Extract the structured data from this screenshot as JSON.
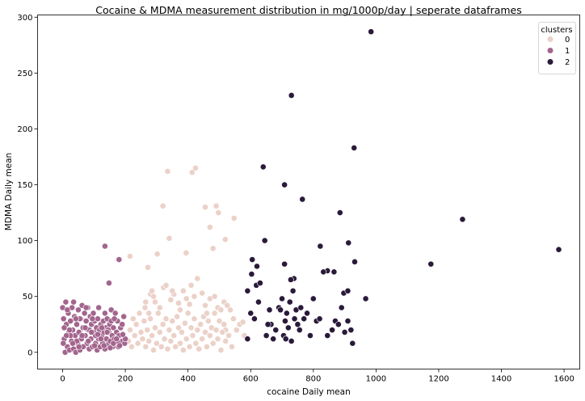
{
  "chart_data": {
    "type": "scatter",
    "title": "Cocaine & MDMA measurement distribution in mg/1000p/day | seperate dataframes",
    "xlabel": "cocaine Daily mean",
    "ylabel": "MDMA Daily mean",
    "xlim": [
      -80,
      1650
    ],
    "ylim": [
      -15,
      302
    ],
    "xticks": [
      "0",
      "200",
      "400",
      "600",
      "800",
      "1000",
      "1200",
      "1400",
      "1600"
    ],
    "yticks": [
      "0",
      "50",
      "100",
      "150",
      "200",
      "250",
      "300"
    ],
    "grid": false,
    "legend": {
      "title": "clusters",
      "placement": "top-right"
    },
    "series": [
      {
        "name": "0",
        "color": "#ebd1c8",
        "points": [
          [
            215,
            86
          ],
          [
            272,
            76
          ],
          [
            320,
            131
          ],
          [
            335,
            162
          ],
          [
            413,
            161
          ],
          [
            424,
            165
          ],
          [
            455,
            130
          ],
          [
            490,
            131
          ],
          [
            497,
            125
          ],
          [
            480,
            93
          ],
          [
            470,
            112
          ],
          [
            519,
            101
          ],
          [
            547,
            120
          ],
          [
            340,
            102
          ],
          [
            302,
            88
          ],
          [
            394,
            89
          ],
          [
            263,
            40
          ],
          [
            275,
            35
          ],
          [
            280,
            52
          ],
          [
            285,
            55
          ],
          [
            295,
            45
          ],
          [
            310,
            40
          ],
          [
            322,
            58
          ],
          [
            330,
            60
          ],
          [
            345,
            47
          ],
          [
            355,
            52
          ],
          [
            370,
            44
          ],
          [
            385,
            55
          ],
          [
            395,
            48
          ],
          [
            405,
            43
          ],
          [
            420,
            50
          ],
          [
            430,
            66
          ],
          [
            445,
            53
          ],
          [
            455,
            42
          ],
          [
            470,
            48
          ],
          [
            485,
            50
          ],
          [
            495,
            40
          ],
          [
            505,
            38
          ],
          [
            515,
            45
          ],
          [
            525,
            42
          ],
          [
            535,
            38
          ],
          [
            545,
            30
          ],
          [
            555,
            20
          ],
          [
            565,
            25
          ],
          [
            575,
            27
          ],
          [
            580,
            15
          ],
          [
            520,
            20
          ],
          [
            210,
            10
          ],
          [
            215,
            20
          ],
          [
            220,
            5
          ],
          [
            225,
            30
          ],
          [
            230,
            15
          ],
          [
            235,
            25
          ],
          [
            240,
            8
          ],
          [
            245,
            35
          ],
          [
            250,
            18
          ],
          [
            255,
            12
          ],
          [
            260,
            28
          ],
          [
            265,
            5
          ],
          [
            270,
            20
          ],
          [
            275,
            10
          ],
          [
            280,
            30
          ],
          [
            285,
            15
          ],
          [
            290,
            2
          ],
          [
            295,
            22
          ],
          [
            300,
            8
          ],
          [
            305,
            35
          ],
          [
            310,
            18
          ],
          [
            315,
            5
          ],
          [
            320,
            25
          ],
          [
            325,
            12
          ],
          [
            330,
            30
          ],
          [
            335,
            3
          ],
          [
            340,
            20
          ],
          [
            345,
            10
          ],
          [
            350,
            28
          ],
          [
            355,
            15
          ],
          [
            360,
            5
          ],
          [
            365,
            32
          ],
          [
            370,
            22
          ],
          [
            375,
            8
          ],
          [
            380,
            18
          ],
          [
            385,
            2
          ],
          [
            390,
            26
          ],
          [
            395,
            12
          ],
          [
            400,
            35
          ],
          [
            405,
            5
          ],
          [
            410,
            22
          ],
          [
            415,
            15
          ],
          [
            420,
            30
          ],
          [
            425,
            8
          ],
          [
            430,
            20
          ],
          [
            435,
            3
          ],
          [
            440,
            25
          ],
          [
            445,
            12
          ],
          [
            450,
            32
          ],
          [
            455,
            18
          ],
          [
            460,
            5
          ],
          [
            465,
            28
          ],
          [
            470,
            15
          ],
          [
            475,
            22
          ],
          [
            480,
            8
          ],
          [
            485,
            35
          ],
          [
            490,
            20
          ],
          [
            495,
            12
          ],
          [
            500,
            28
          ],
          [
            505,
            2
          ],
          [
            510,
            18
          ],
          [
            515,
            25
          ],
          [
            520,
            10
          ],
          [
            530,
            15
          ],
          [
            540,
            5
          ],
          [
            265,
            45
          ],
          [
            350,
            55
          ],
          [
            410,
            60
          ],
          [
            460,
            35
          ],
          [
            290,
            50
          ],
          [
            375,
            38
          ]
        ]
      },
      {
        "name": "1",
        "color": "#a3658e",
        "points": [
          [
            135,
            95
          ],
          [
            180,
            83
          ],
          [
            148,
            62
          ],
          [
            0,
            40
          ],
          [
            3,
            30
          ],
          [
            5,
            12
          ],
          [
            8,
            0
          ],
          [
            10,
            45
          ],
          [
            12,
            25
          ],
          [
            15,
            5
          ],
          [
            18,
            35
          ],
          [
            20,
            18
          ],
          [
            22,
            2
          ],
          [
            25,
            28
          ],
          [
            28,
            10
          ],
          [
            30,
            40
          ],
          [
            32,
            20
          ],
          [
            35,
            3
          ],
          [
            38,
            32
          ],
          [
            40,
            15
          ],
          [
            42,
            0
          ],
          [
            45,
            25
          ],
          [
            48,
            8
          ],
          [
            50,
            38
          ],
          [
            52,
            18
          ],
          [
            55,
            2
          ],
          [
            58,
            30
          ],
          [
            60,
            12
          ],
          [
            62,
            42
          ],
          [
            65,
            22
          ],
          [
            68,
            5
          ],
          [
            70,
            35
          ],
          [
            72,
            15
          ],
          [
            75,
            28
          ],
          [
            78,
            8
          ],
          [
            80,
            40
          ],
          [
            82,
            20
          ],
          [
            85,
            3
          ],
          [
            88,
            32
          ],
          [
            90,
            12
          ],
          [
            92,
            25
          ],
          [
            95,
            5
          ],
          [
            98,
            35
          ],
          [
            100,
            18
          ],
          [
            102,
            28
          ],
          [
            105,
            8
          ],
          [
            108,
            22
          ],
          [
            110,
            2
          ],
          [
            112,
            30
          ],
          [
            115,
            12
          ],
          [
            118,
            20
          ],
          [
            120,
            5
          ],
          [
            122,
            25
          ],
          [
            125,
            15
          ],
          [
            128,
            8
          ],
          [
            130,
            28
          ],
          [
            132,
            18
          ],
          [
            135,
            3
          ],
          [
            138,
            22
          ],
          [
            140,
            12
          ],
          [
            142,
            30
          ],
          [
            145,
            7
          ],
          [
            148,
            18
          ],
          [
            150,
            25
          ],
          [
            152,
            10
          ],
          [
            155,
            38
          ],
          [
            158,
            15
          ],
          [
            160,
            5
          ],
          [
            162,
            22
          ],
          [
            165,
            12
          ],
          [
            168,
            35
          ],
          [
            170,
            8
          ],
          [
            172,
            18
          ],
          [
            175,
            28
          ],
          [
            178,
            5
          ],
          [
            180,
            15
          ],
          [
            185,
            22
          ],
          [
            190,
            10
          ],
          [
            195,
            32
          ],
          [
            198,
            8
          ],
          [
            5,
            22
          ],
          [
            15,
            38
          ],
          [
            25,
            15
          ],
          [
            35,
            45
          ],
          [
            45,
            10
          ],
          [
            55,
            30
          ],
          [
            65,
            5
          ],
          [
            75,
            40
          ],
          [
            85,
            20
          ],
          [
            95,
            30
          ],
          [
            105,
            15
          ],
          [
            115,
            40
          ],
          [
            125,
            22
          ],
          [
            135,
            35
          ],
          [
            145,
            20
          ],
          [
            155,
            28
          ],
          [
            165,
            30
          ],
          [
            175,
            10
          ],
          [
            190,
            25
          ],
          [
            200,
            12
          ],
          [
            2,
            8
          ],
          [
            12,
            15
          ],
          [
            22,
            20
          ],
          [
            32,
            8
          ],
          [
            42,
            30
          ],
          [
            52,
            5
          ],
          [
            62,
            15
          ],
          [
            72,
            22
          ],
          [
            82,
            10
          ],
          [
            92,
            18
          ],
          [
            102,
            6
          ],
          [
            112,
            16
          ],
          [
            122,
            12
          ],
          [
            132,
            6
          ],
          [
            142,
            18
          ],
          [
            152,
            4
          ],
          [
            162,
            8
          ],
          [
            172,
            12
          ],
          [
            182,
            6
          ],
          [
            192,
            16
          ]
        ]
      },
      {
        "name": "2",
        "color": "#2a1a3a",
        "points": [
          [
            984,
            287
          ],
          [
            730,
            230
          ],
          [
            930,
            183
          ],
          [
            640,
            166
          ],
          [
            708,
            150
          ],
          [
            765,
            137
          ],
          [
            885,
            125
          ],
          [
            1276,
            119
          ],
          [
            1175,
            79
          ],
          [
            1583,
            92
          ],
          [
            645,
            100
          ],
          [
            822,
            95
          ],
          [
            912,
            98
          ],
          [
            932,
            81
          ],
          [
            605,
            83
          ],
          [
            618,
            60
          ],
          [
            620,
            77
          ],
          [
            603,
            70
          ],
          [
            845,
            73
          ],
          [
            832,
            72
          ],
          [
            866,
            72
          ],
          [
            708,
            79
          ],
          [
            738,
            66
          ],
          [
            897,
            53
          ],
          [
            910,
            55
          ],
          [
            967,
            48
          ],
          [
            590,
            55
          ],
          [
            625,
            45
          ],
          [
            650,
            15
          ],
          [
            660,
            38
          ],
          [
            665,
            25
          ],
          [
            680,
            20
          ],
          [
            690,
            40
          ],
          [
            700,
            48
          ],
          [
            705,
            15
          ],
          [
            710,
            28
          ],
          [
            715,
            35
          ],
          [
            720,
            22
          ],
          [
            725,
            45
          ],
          [
            730,
            10
          ],
          [
            735,
            55
          ],
          [
            740,
            30
          ],
          [
            745,
            38
          ],
          [
            750,
            25
          ],
          [
            760,
            40
          ],
          [
            770,
            30
          ],
          [
            780,
            35
          ],
          [
            790,
            15
          ],
          [
            800,
            48
          ],
          [
            810,
            28
          ],
          [
            820,
            30
          ],
          [
            845,
            15
          ],
          [
            860,
            20
          ],
          [
            870,
            28
          ],
          [
            880,
            25
          ],
          [
            890,
            40
          ],
          [
            900,
            18
          ],
          [
            910,
            28
          ],
          [
            920,
            20
          ],
          [
            925,
            8
          ],
          [
            590,
            12
          ],
          [
            600,
            35
          ],
          [
            612,
            30
          ],
          [
            630,
            62
          ],
          [
            655,
            25
          ],
          [
            672,
            12
          ],
          [
            695,
            38
          ],
          [
            712,
            12
          ],
          [
            728,
            65
          ],
          [
            756,
            20
          ]
        ]
      }
    ]
  }
}
